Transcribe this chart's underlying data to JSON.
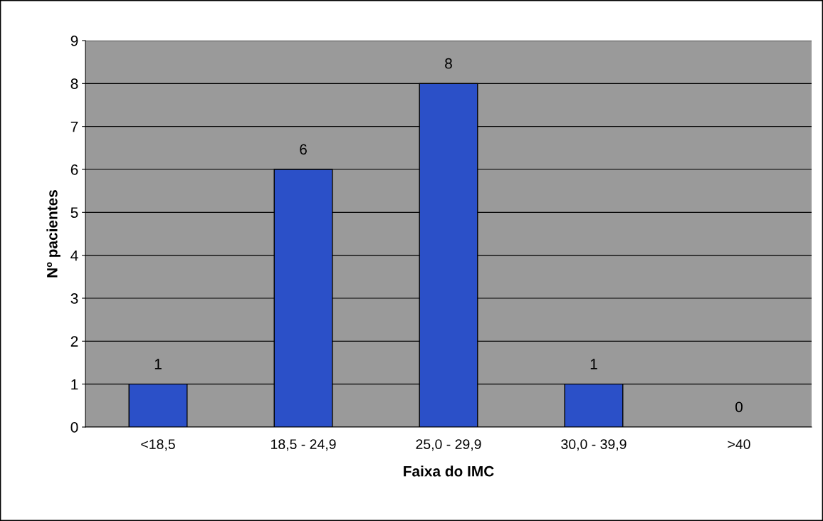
{
  "chart_data": {
    "type": "bar",
    "xlabel": "Faixa do IMC",
    "ylabel": "Nº pacientes",
    "categories": [
      "<18,5",
      "18,5 - 24,9",
      "25,0 - 29,9",
      "30,0 - 39,9",
      ">40"
    ],
    "values": [
      1,
      6,
      8,
      1,
      0
    ],
    "color": "#2b50c8",
    "ylim": [
      0,
      9
    ],
    "yticks": [
      0,
      1,
      2,
      3,
      4,
      5,
      6,
      7,
      8,
      9
    ],
    "grid": "y",
    "data_labels": true
  }
}
